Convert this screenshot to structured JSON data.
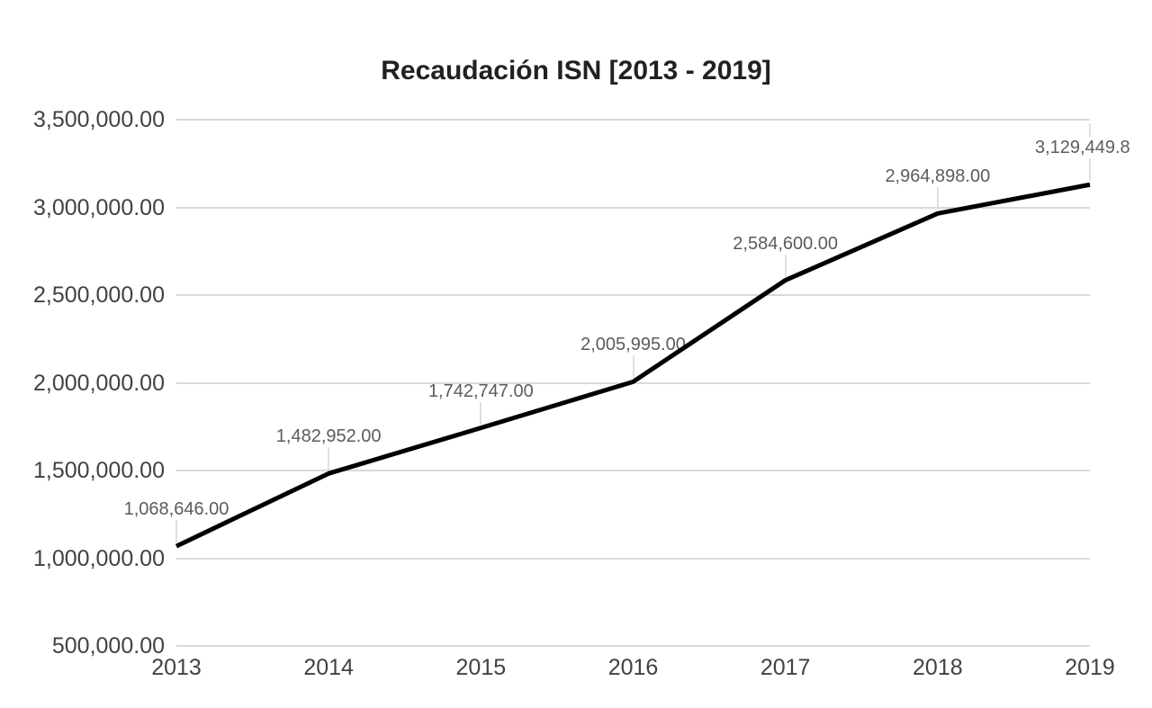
{
  "chart_data": {
    "type": "line",
    "title": "Recaudación ISN [2013 - 2019]",
    "categories": [
      "2013",
      "2014",
      "2015",
      "2016",
      "2017",
      "2018",
      "2019"
    ],
    "series": [
      {
        "name": "Recaudación ISN",
        "values": [
          1068646,
          1482952,
          1742747,
          2005995,
          2584600,
          2964898,
          3129449.8
        ]
      }
    ],
    "point_labels": [
      "1,068,646.00",
      "1,482,952.00",
      "1,742,747.00",
      "2,005,995.00",
      "2,584,600.00",
      "2,964,898.00",
      "3,129,449.8"
    ],
    "last_point_label_truncated": true,
    "y_axis": {
      "labels": [
        "3,500,000.00",
        "3,000,000.00",
        "2,500,000.00",
        "2,000,000.00",
        "1,500,000.00",
        "1,000,000.00",
        "500,000.00"
      ],
      "values": [
        3500000,
        3000000,
        2500000,
        2000000,
        1500000,
        1000000,
        500000
      ]
    },
    "ylim": [
      500000,
      3500000
    ],
    "xlabel": "",
    "ylabel": "",
    "grid": true,
    "legend": "none",
    "colors": {
      "line": "#000000",
      "gridline": "#d9d9d9",
      "leader_line": "#e0e0e0",
      "title_text": "#212121",
      "axis_text": "#424242",
      "data_label_text": "#5c5c5c",
      "background": "#ffffff"
    }
  }
}
